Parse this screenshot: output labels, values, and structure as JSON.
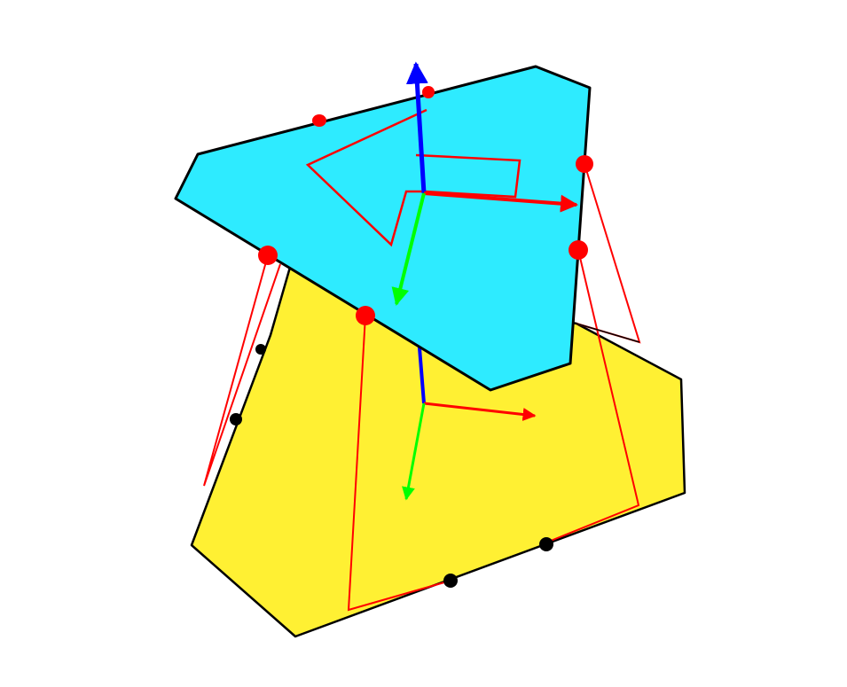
{
  "scene": {
    "background": "#ffffff",
    "bodies": [
      {
        "name": "lower-polygon",
        "fill": "#fff033",
        "stroke": "#000000"
      },
      {
        "name": "upper-polygon",
        "fill": "#2eebff",
        "stroke": "#000000"
      }
    ],
    "axis_colors": {
      "x": "#ff0000",
      "y": "#00ff00",
      "z": "#0000ff"
    },
    "contact_point_colors": {
      "lower": "#000000",
      "upper": "#ff0000"
    },
    "outline_color": "#ff0000"
  }
}
